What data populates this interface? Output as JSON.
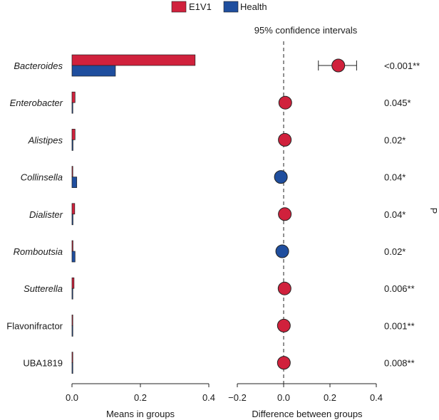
{
  "chart_data": {
    "type": "bar",
    "legend": {
      "entries": [
        {
          "name": "E1V1",
          "color": "#d0213c"
        },
        {
          "name": "Health",
          "color": "#1f4e9e"
        }
      ],
      "placement": "top-center"
    },
    "categories": [
      "Bacteroides",
      "Enterobacter",
      "Alistipes",
      "Collinsella",
      "Dialister",
      "Romboutsia",
      "Sutterella",
      "Flavonifractor",
      "UBA1819"
    ],
    "category_italic": [
      true,
      true,
      true,
      true,
      true,
      true,
      true,
      false,
      false
    ],
    "left_panel": {
      "xlabel": "Means in groups",
      "xlim": [
        0,
        0.4
      ],
      "xticks": [
        0.0,
        0.2,
        0.4
      ],
      "xtick_labels": [
        "0.0",
        "0.2",
        "0.4"
      ],
      "series": [
        {
          "name": "E1V1",
          "color": "#d0213c",
          "values": [
            0.36,
            0.009,
            0.009,
            0.002,
            0.008,
            0.003,
            0.006,
            0.002,
            0.002
          ]
        },
        {
          "name": "Health",
          "color": "#1f4e9e",
          "values": [
            0.127,
            0.001,
            0.003,
            0.014,
            0.003,
            0.009,
            0.001,
            0.001,
            0.001
          ]
        }
      ]
    },
    "right_panel": {
      "title": "95% confidence intervals",
      "xlabel": "Difference between groups",
      "xlim": [
        -0.2,
        0.4
      ],
      "xticks": [
        -0.2,
        0.0,
        0.2,
        0.4
      ],
      "xtick_labels": [
        "−0.2",
        "0.0",
        "0.2",
        "0.4"
      ],
      "reference_line": 0,
      "points": [
        {
          "estimate": 0.236,
          "ci": [
            0.15,
            0.315
          ],
          "group": "E1V1"
        },
        {
          "estimate": 0.007,
          "ci": [
            0.004,
            0.01
          ],
          "group": "E1V1"
        },
        {
          "estimate": 0.005,
          "ci": [
            0.002,
            0.008
          ],
          "group": "E1V1"
        },
        {
          "estimate": -0.012,
          "ci": [
            -0.018,
            -0.006
          ],
          "group": "Health"
        },
        {
          "estimate": 0.005,
          "ci": [
            0.002,
            0.008
          ],
          "group": "E1V1"
        },
        {
          "estimate": -0.006,
          "ci": [
            -0.01,
            -0.002
          ],
          "group": "Health"
        },
        {
          "estimate": 0.004,
          "ci": [
            0.002,
            0.006
          ],
          "group": "E1V1"
        },
        {
          "estimate": 0.001,
          "ci": [
            0.0,
            0.002
          ],
          "group": "E1V1"
        },
        {
          "estimate": 0.001,
          "ci": [
            0.0,
            0.002
          ],
          "group": "E1V1"
        }
      ]
    },
    "p_values": [
      "<0.001**",
      "0.045*",
      "0.02*",
      "0.04*",
      "0.04*",
      "0.02*",
      "0.006**",
      "0.001**",
      "0.008**"
    ],
    "p_axis_label": "P"
  }
}
